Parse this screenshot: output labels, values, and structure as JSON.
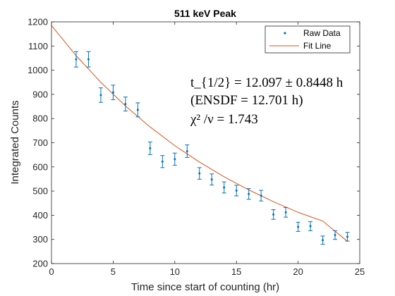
{
  "chart_data": {
    "type": "scatter",
    "title": "511 keV Peak",
    "xlabel": "Time since start of counting (hr)",
    "ylabel": "Integrated Counts",
    "xlim": [
      0,
      25
    ],
    "ylim": [
      200,
      1200
    ],
    "xticks": [
      "0",
      "5",
      "10",
      "15",
      "20",
      "25"
    ],
    "yticks": [
      "200",
      "300",
      "400",
      "500",
      "600",
      "700",
      "800",
      "900",
      "1000",
      "1100",
      "1200"
    ],
    "grid": false,
    "legend_position": "top-right",
    "legend": [
      "Raw Data",
      "Fit Line"
    ],
    "series": [
      {
        "name": "Raw Data",
        "kind": "errorbar",
        "color": "#0072BD",
        "x": [
          2,
          3,
          4,
          5,
          6,
          7,
          8,
          9,
          10,
          11,
          12,
          13,
          14,
          15,
          16,
          17,
          18,
          19,
          20,
          21,
          22,
          23,
          24
        ],
        "y": [
          1045,
          1045,
          897,
          908,
          860,
          836,
          677,
          622,
          632,
          665,
          573,
          548,
          515,
          502,
          488,
          481,
          403,
          412,
          352,
          355,
          297,
          318,
          311
        ],
        "err": [
          32,
          32,
          30,
          30,
          29,
          29,
          26,
          25,
          25,
          26,
          24,
          23,
          23,
          22,
          22,
          22,
          20,
          20,
          19,
          19,
          17,
          18,
          18
        ]
      },
      {
        "name": "Fit Line",
        "kind": "line",
        "color": "#D95319",
        "x": [
          0,
          2,
          4,
          6,
          8,
          10,
          12,
          14,
          16,
          18,
          20,
          22,
          24
        ],
        "y": [
          1185,
          1060,
          950,
          852,
          765,
          688,
          620,
          559,
          505,
          456,
          412,
          376,
          292
        ]
      }
    ],
    "annotations": [
      "t_{1/2} = 12.097 ± 0.8448 h",
      "(ENSDF = 12.701 h)",
      "χ² /ν = 1.743"
    ]
  }
}
